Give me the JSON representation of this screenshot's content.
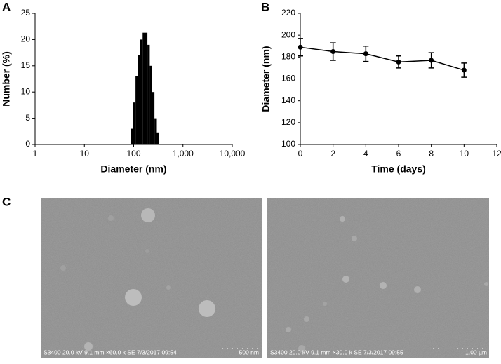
{
  "chart_data": [
    {
      "type": "histogram",
      "panel": "A",
      "xlabel": "Diameter (nm)",
      "ylabel": "Number (%)",
      "xlog": true,
      "xlim": [
        1,
        10000
      ],
      "xticks": [
        1,
        10,
        100,
        {
          "value": 1000,
          "label": "1,000"
        },
        {
          "value": 10000,
          "label": "10,000"
        }
      ],
      "ylim": [
        0,
        25
      ],
      "yticks": [
        0,
        5,
        10,
        15,
        20,
        25
      ],
      "color": "#000000",
      "bins": [
        87,
        97,
        109,
        122,
        136,
        152,
        170,
        190,
        212,
        237,
        264,
        295,
        330
      ],
      "values": [
        3,
        8,
        13,
        17,
        20,
        21.3,
        21.3,
        19,
        15,
        10,
        5,
        2.3
      ]
    },
    {
      "type": "line",
      "panel": "B",
      "xlabel": "Time (days)",
      "ylabel": "Diameter (nm)",
      "xlim": [
        0,
        12
      ],
      "xticks": [
        0,
        2,
        4,
        6,
        8,
        10,
        12
      ],
      "ylim": [
        100,
        220
      ],
      "yticks": [
        100,
        120,
        140,
        160,
        180,
        200,
        220
      ],
      "color": "#000000",
      "x": [
        0,
        2,
        4,
        6,
        8,
        10
      ],
      "values": [
        189,
        185,
        183,
        175.5,
        177,
        168
      ],
      "errors": [
        8,
        8,
        7,
        5.5,
        7,
        6.5
      ]
    }
  ],
  "sem_panel": "C",
  "sem_images": [
    {
      "info": "S3400 20.0 kV 9.1 mm ×60.0 k SE  7/3/2017  09:54",
      "scale": "500 nm"
    },
    {
      "info": "S3400 20.0 kV 9.1 mm ×30.0 k SE  7/3/2017  09:55",
      "scale": "1.00 µm"
    }
  ]
}
